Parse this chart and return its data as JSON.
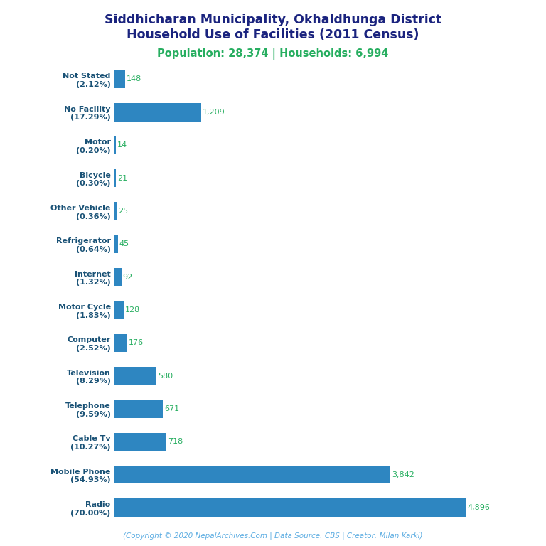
{
  "title_line1": "Siddhicharan Municipality, Okhaldhunga District",
  "title_line2": "Household Use of Facilities (2011 Census)",
  "subtitle": "Population: 28,374 | Households: 6,994",
  "copyright": "(Copyright © 2020 NepalArchives.Com | Data Source: CBS | Creator: Milan Karki)",
  "categories": [
    "Not Stated\n(2.12%)",
    "No Facility\n(17.29%)",
    "Motor\n(0.20%)",
    "Bicycle\n(0.30%)",
    "Other Vehicle\n(0.36%)",
    "Refrigerator\n(0.64%)",
    "Internet\n(1.32%)",
    "Motor Cycle\n(1.83%)",
    "Computer\n(2.52%)",
    "Television\n(8.29%)",
    "Telephone\n(9.59%)",
    "Cable Tv\n(10.27%)",
    "Mobile Phone\n(54.93%)",
    "Radio\n(70.00%)"
  ],
  "values": [
    148,
    1209,
    14,
    21,
    25,
    45,
    92,
    128,
    176,
    580,
    671,
    718,
    3842,
    4896
  ],
  "bar_color": "#2e86c1",
  "title_color": "#1a237e",
  "subtitle_color": "#27ae60",
  "value_color": "#27ae60",
  "label_color": "#1a5276",
  "copyright_color": "#5dade2",
  "background_color": "#ffffff",
  "figsize": [
    7.68,
    7.68
  ],
  "dpi": 100
}
